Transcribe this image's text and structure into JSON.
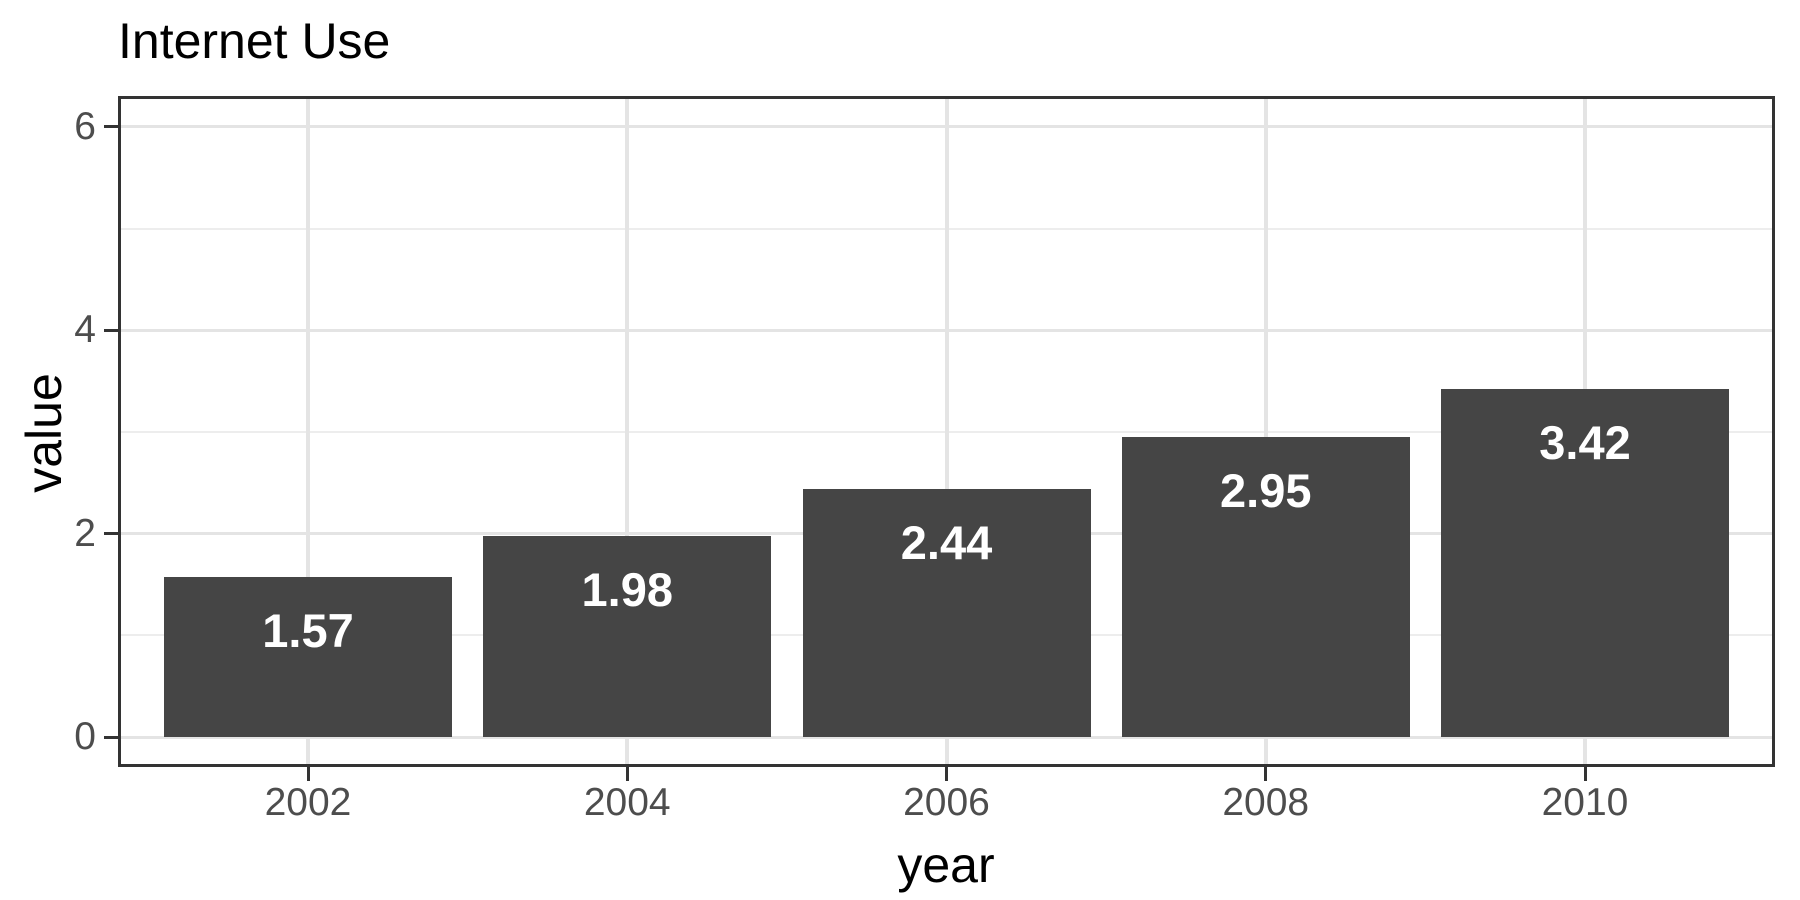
{
  "chart": {
    "title": "Internet Use",
    "xlabel": "year",
    "ylabel": "value"
  },
  "chart_data": {
    "type": "bar",
    "title": "Internet Use",
    "xlabel": "year",
    "ylabel": "value",
    "categories": [
      "2002",
      "2004",
      "2006",
      "2008",
      "2010"
    ],
    "values": [
      1.57,
      1.98,
      2.44,
      2.95,
      3.42
    ],
    "bar_labels": [
      "1.57",
      "1.98",
      "2.44",
      "2.95",
      "3.42"
    ],
    "y_major_ticks": [
      0,
      2,
      4,
      6
    ],
    "y_tick_labels": [
      "0",
      "2",
      "4",
      "6"
    ],
    "y_minor_gridlines": [
      1,
      3,
      5
    ],
    "ylim": [
      -0.3,
      6.3
    ],
    "grid": true,
    "legend": false,
    "colors": {
      "bar_fill": "#454545",
      "bar_label_text": "#ffffff",
      "panel_border": "#333333",
      "tick_mark": "#333333",
      "gridline_major": "#e4e4e4",
      "gridline_minor": "#ededed",
      "tick_label_text": "#4d4d4d",
      "title_text": "#000000",
      "background": "#ffffff"
    }
  }
}
